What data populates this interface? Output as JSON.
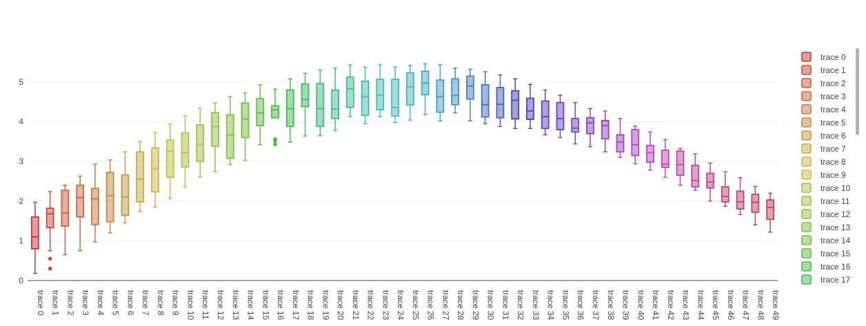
{
  "chart_data": {
    "type": "box",
    "title": "",
    "xlabel": "",
    "ylabel": "",
    "ylim": [
      0,
      5.85
    ],
    "yticks": [
      0,
      1,
      2,
      3,
      4,
      5
    ],
    "grid": true,
    "legend_placement": "right",
    "legend_visible_count": 18,
    "series": [
      {
        "name": "trace 0",
        "color": "#c23b3b",
        "min": 0.18,
        "q1": 0.8,
        "median": 1.1,
        "q3": 1.6,
        "max": 1.97,
        "outliers": []
      },
      {
        "name": "trace 1",
        "color": "#c84c3e",
        "min": 0.75,
        "q1": 1.33,
        "median": 1.68,
        "q3": 1.82,
        "max": 2.24,
        "outliers": [
          0.55,
          0.3
        ]
      },
      {
        "name": "trace 2",
        "color": "#c8603f",
        "min": 0.65,
        "q1": 1.37,
        "median": 1.7,
        "q3": 2.27,
        "max": 2.4,
        "outliers": []
      },
      {
        "name": "trace 3",
        "color": "#c76c42",
        "min": 0.75,
        "q1": 1.6,
        "median": 2.09,
        "q3": 2.4,
        "max": 2.63,
        "outliers": []
      },
      {
        "name": "trace 4",
        "color": "#c97a45",
        "min": 0.97,
        "q1": 1.41,
        "median": 2.06,
        "q3": 2.32,
        "max": 2.93,
        "outliers": []
      },
      {
        "name": "trace 5",
        "color": "#c98746",
        "min": 1.2,
        "q1": 1.48,
        "median": 2.14,
        "q3": 2.72,
        "max": 3.04,
        "outliers": []
      },
      {
        "name": "trace 6",
        "color": "#c29a46",
        "min": 1.45,
        "q1": 1.64,
        "median": 2.1,
        "q3": 2.66,
        "max": 3.24,
        "outliers": []
      },
      {
        "name": "trace 7",
        "color": "#c8ac48",
        "min": 1.74,
        "q1": 1.98,
        "median": 2.56,
        "q3": 3.24,
        "max": 3.5,
        "outliers": []
      },
      {
        "name": "trace 8",
        "color": "#c8b84a",
        "min": 1.85,
        "q1": 2.23,
        "median": 2.82,
        "q3": 3.34,
        "max": 3.73,
        "outliers": []
      },
      {
        "name": "trace 9",
        "color": "#bfc04a",
        "min": 2.06,
        "q1": 2.6,
        "median": 3.26,
        "q3": 3.54,
        "max": 3.94,
        "outliers": []
      },
      {
        "name": "trace 10",
        "color": "#b0c04a",
        "min": 2.35,
        "q1": 2.86,
        "median": 3.22,
        "q3": 3.72,
        "max": 4.15,
        "outliers": []
      },
      {
        "name": "trace 11",
        "color": "#a3c04a",
        "min": 2.6,
        "q1": 3.0,
        "median": 3.43,
        "q3": 3.92,
        "max": 4.34,
        "outliers": []
      },
      {
        "name": "trace 12",
        "color": "#95c04a",
        "min": 2.74,
        "q1": 3.38,
        "median": 3.88,
        "q3": 4.23,
        "max": 4.47,
        "outliers": []
      },
      {
        "name": "trace 13",
        "color": "#86be48",
        "min": 2.92,
        "q1": 3.08,
        "median": 3.67,
        "q3": 4.17,
        "max": 4.63,
        "outliers": []
      },
      {
        "name": "trace 14",
        "color": "#76bd47",
        "min": 3.03,
        "q1": 3.6,
        "median": 4.07,
        "q3": 4.47,
        "max": 4.73,
        "outliers": []
      },
      {
        "name": "trace 15",
        "color": "#63bd45",
        "min": 3.42,
        "q1": 3.9,
        "median": 4.22,
        "q3": 4.58,
        "max": 4.93,
        "outliers": []
      },
      {
        "name": "trace 16",
        "color": "#4cba44",
        "min": 4.1,
        "q1": 4.1,
        "median": 4.3,
        "q3": 4.4,
        "max": 4.82,
        "outliers": [
          3.56,
          3.52,
          3.43
        ]
      },
      {
        "name": "trace 17",
        "color": "#44ba55",
        "min": 3.49,
        "q1": 3.88,
        "median": 4.33,
        "q3": 4.8,
        "max": 5.08,
        "outliers": []
      },
      {
        "name": "trace 18",
        "color": "#44b96a",
        "min": 3.64,
        "q1": 4.38,
        "median": 4.56,
        "q3": 4.95,
        "max": 5.22,
        "outliers": []
      },
      {
        "name": "trace 19",
        "color": "#45ba7c",
        "min": 3.65,
        "q1": 3.88,
        "median": 4.33,
        "q3": 4.96,
        "max": 5.3,
        "outliers": []
      },
      {
        "name": "trace 20",
        "color": "#46ba8c",
        "min": 3.78,
        "q1": 4.08,
        "median": 4.32,
        "q3": 4.8,
        "max": 5.35,
        "outliers": []
      },
      {
        "name": "trace 21",
        "color": "#47bb9b",
        "min": 4.13,
        "q1": 4.36,
        "median": 4.83,
        "q3": 5.12,
        "max": 5.43,
        "outliers": []
      },
      {
        "name": "trace 22",
        "color": "#47bba8",
        "min": 3.95,
        "q1": 4.16,
        "median": 4.63,
        "q3": 5.02,
        "max": 5.37,
        "outliers": []
      },
      {
        "name": "trace 23",
        "color": "#48bbb4",
        "min": 4.13,
        "q1": 4.3,
        "median": 4.67,
        "q3": 5.07,
        "max": 5.44,
        "outliers": []
      },
      {
        "name": "trace 24",
        "color": "#48bcbe",
        "min": 3.98,
        "q1": 4.14,
        "median": 4.36,
        "q3": 5.07,
        "max": 5.38,
        "outliers": []
      },
      {
        "name": "trace 25",
        "color": "#48b5c0",
        "min": 4.04,
        "q1": 4.42,
        "median": 4.88,
        "q3": 5.23,
        "max": 5.42,
        "outliers": []
      },
      {
        "name": "trace 26",
        "color": "#48abc0",
        "min": 4.18,
        "q1": 4.68,
        "median": 4.97,
        "q3": 5.27,
        "max": 5.46,
        "outliers": []
      },
      {
        "name": "trace 27",
        "color": "#489fc0",
        "min": 4.02,
        "q1": 4.24,
        "median": 4.63,
        "q3": 5.05,
        "max": 5.43,
        "outliers": []
      },
      {
        "name": "trace 28",
        "color": "#4892bf",
        "min": 4.22,
        "q1": 4.43,
        "median": 4.66,
        "q3": 5.08,
        "max": 5.35,
        "outliers": []
      },
      {
        "name": "trace 29",
        "color": "#4883bd",
        "min": 4.02,
        "q1": 4.57,
        "median": 4.9,
        "q3": 5.15,
        "max": 5.32,
        "outliers": []
      },
      {
        "name": "trace 30",
        "color": "#4873bd",
        "min": 3.95,
        "q1": 4.12,
        "median": 4.43,
        "q3": 4.93,
        "max": 5.26,
        "outliers": []
      },
      {
        "name": "trace 31",
        "color": "#4861bd",
        "min": 3.88,
        "q1": 4.1,
        "median": 4.44,
        "q3": 4.86,
        "max": 5.18,
        "outliers": []
      },
      {
        "name": "trace 32",
        "color": "#3f48b5",
        "min": 3.83,
        "q1": 4.07,
        "median": 4.54,
        "q3": 4.78,
        "max": 5.08,
        "outliers": []
      },
      {
        "name": "trace 33",
        "color": "#4a48bd",
        "min": 3.83,
        "q1": 4.06,
        "median": 4.27,
        "q3": 4.59,
        "max": 4.94,
        "outliers": []
      },
      {
        "name": "trace 34",
        "color": "#5a48bd",
        "min": 3.67,
        "q1": 3.83,
        "median": 4.13,
        "q3": 4.52,
        "max": 4.8,
        "outliers": []
      },
      {
        "name": "trace 35",
        "color": "#6848bd",
        "min": 3.6,
        "q1": 3.8,
        "median": 4.08,
        "q3": 4.48,
        "max": 4.67,
        "outliers": []
      },
      {
        "name": "trace 36",
        "color": "#7748bd",
        "min": 3.44,
        "q1": 3.74,
        "median": 3.84,
        "q3": 4.08,
        "max": 4.48,
        "outliers": []
      },
      {
        "name": "trace 37",
        "color": "#8548bd",
        "min": 3.37,
        "q1": 3.7,
        "median": 3.97,
        "q3": 4.1,
        "max": 4.33,
        "outliers": []
      },
      {
        "name": "trace 38",
        "color": "#9348bd",
        "min": 3.24,
        "q1": 3.57,
        "median": 3.9,
        "q3": 4.03,
        "max": 4.27,
        "outliers": []
      },
      {
        "name": "trace 39",
        "color": "#a248bd",
        "min": 3.1,
        "q1": 3.24,
        "median": 3.49,
        "q3": 3.67,
        "max": 4.08,
        "outliers": []
      },
      {
        "name": "trace 40",
        "color": "#af48bd",
        "min": 2.94,
        "q1": 3.15,
        "median": 3.42,
        "q3": 3.8,
        "max": 3.89,
        "outliers": []
      },
      {
        "name": "trace 41",
        "color": "#bb48bd",
        "min": 2.78,
        "q1": 2.98,
        "median": 3.22,
        "q3": 3.4,
        "max": 3.74,
        "outliers": []
      },
      {
        "name": "trace 42",
        "color": "#bd48b2",
        "min": 2.6,
        "q1": 2.85,
        "median": 2.93,
        "q3": 3.28,
        "max": 3.55,
        "outliers": []
      },
      {
        "name": "trace 43",
        "color": "#bd48a5",
        "min": 2.4,
        "q1": 2.65,
        "median": 2.92,
        "q3": 3.26,
        "max": 3.33,
        "outliers": []
      },
      {
        "name": "trace 44",
        "color": "#bd4898",
        "min": 2.27,
        "q1": 2.36,
        "median": 2.52,
        "q3": 2.9,
        "max": 3.19,
        "outliers": []
      },
      {
        "name": "trace 45",
        "color": "#bd488a",
        "min": 2.0,
        "q1": 2.33,
        "median": 2.48,
        "q3": 2.7,
        "max": 2.96,
        "outliers": []
      },
      {
        "name": "trace 46",
        "color": "#bd487c",
        "min": 1.87,
        "q1": 1.98,
        "median": 2.12,
        "q3": 2.36,
        "max": 2.74,
        "outliers": []
      },
      {
        "name": "trace 47",
        "color": "#bd486d",
        "min": 1.66,
        "q1": 1.8,
        "median": 1.98,
        "q3": 2.25,
        "max": 2.59,
        "outliers": []
      },
      {
        "name": "trace 48",
        "color": "#bd485e",
        "min": 1.4,
        "q1": 1.72,
        "median": 1.97,
        "q3": 2.17,
        "max": 2.37,
        "outliers": []
      },
      {
        "name": "trace 49",
        "color": "#bd4850",
        "min": 1.22,
        "q1": 1.54,
        "median": 1.84,
        "q3": 2.03,
        "max": 2.2,
        "outliers": []
      }
    ]
  }
}
